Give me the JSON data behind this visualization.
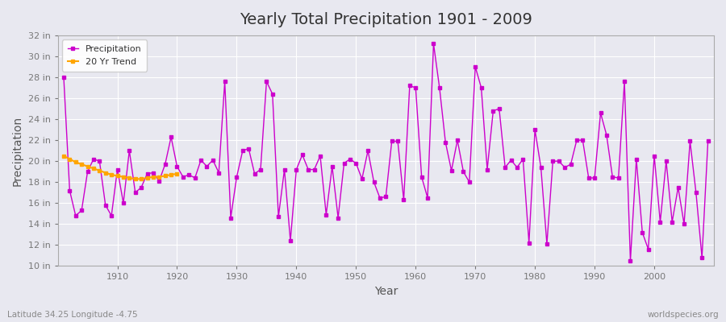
{
  "title": "Yearly Total Precipitation 1901 - 2009",
  "xlabel": "Year",
  "ylabel": "Precipitation",
  "lat_lon_label": "Latitude 34.25 Longitude -4.75",
  "source_label": "worldspecies.org",
  "precip_in": [
    28.0,
    17.2,
    14.8,
    15.3,
    19.0,
    20.2,
    20.0,
    15.8,
    14.8,
    19.2,
    16.0,
    21.0,
    17.0,
    17.5,
    18.8,
    18.9,
    18.1,
    19.7,
    22.3,
    19.5,
    18.5,
    18.7,
    18.4,
    20.1,
    19.5,
    20.1,
    18.9,
    27.6,
    14.6,
    18.5,
    21.0,
    21.2,
    18.8,
    19.2,
    27.6,
    26.4,
    14.7,
    19.2,
    12.4,
    19.2,
    20.6,
    19.2,
    19.2,
    20.5,
    14.9,
    19.5,
    14.6,
    19.8,
    20.2,
    19.8,
    18.3,
    21.0,
    18.0,
    16.5,
    16.6,
    21.9,
    21.9,
    16.3,
    27.2,
    27.0,
    18.5,
    16.5,
    31.2,
    27.0,
    21.8,
    19.1,
    22.0,
    19.0,
    18.0,
    29.0,
    27.0,
    19.2,
    24.8,
    25.0,
    19.4,
    20.1,
    19.4,
    20.2,
    12.2,
    23.0,
    19.4,
    12.1,
    20.0,
    20.0,
    19.4,
    19.7,
    22.0,
    22.0,
    18.4,
    18.4,
    24.6,
    22.5,
    18.5,
    18.4,
    27.6,
    10.5,
    20.2,
    13.2,
    11.6,
    20.5,
    14.2,
    20.0,
    14.2,
    17.5,
    14.0,
    21.9,
    17.0,
    10.8,
    21.9
  ],
  "year_start": 1901,
  "line_color": "#cc00cc",
  "trend_color": "#ffa500",
  "bg_color": "#e8e8f0",
  "grid_color": "#ffffff",
  "ylim_min": 10,
  "ylim_max": 32,
  "ytick_step": 2,
  "xlim_min": 1900,
  "xlim_max": 2010,
  "xticks": [
    1910,
    1920,
    1930,
    1940,
    1950,
    1960,
    1970,
    1980,
    1990,
    2000
  ],
  "trend_years": [
    1901,
    1902,
    1903,
    1904,
    1905,
    1906,
    1907,
    1908,
    1909,
    1910,
    1911,
    1912,
    1913,
    1914,
    1915,
    1916,
    1917,
    1918,
    1919,
    1920
  ],
  "trend_vals": [
    20.5,
    20.2,
    19.9,
    19.7,
    19.5,
    19.3,
    19.1,
    18.9,
    18.7,
    18.6,
    18.5,
    18.4,
    18.3,
    18.3,
    18.4,
    18.5,
    18.5,
    18.6,
    18.7,
    18.8
  ]
}
